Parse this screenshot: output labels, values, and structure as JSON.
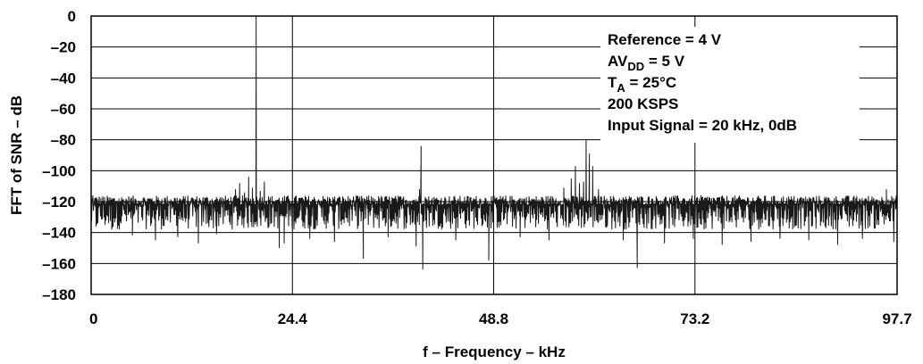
{
  "chart_data": {
    "type": "line",
    "xlabel": "f – Frequency – kHz",
    "ylabel": "FFT of SNR – dB",
    "xlim": [
      0,
      97.7
    ],
    "ylim": [
      -180,
      0
    ],
    "x_ticks": [
      "0",
      "24.4",
      "48.8",
      "73.2",
      "97.7"
    ],
    "x_tick_values": [
      0,
      24.4,
      48.8,
      73.2,
      97.7
    ],
    "y_ticks": [
      "0",
      "–20",
      "–40",
      "–60",
      "–80",
      "–100",
      "–120",
      "–140",
      "–160",
      "–180"
    ],
    "y_tick_values": [
      0,
      -20,
      -40,
      -60,
      -80,
      -100,
      -120,
      -140,
      -160,
      -180
    ],
    "grid": true,
    "series": [
      {
        "noise_floor_db": -124,
        "noise_band_db": [
          -138,
          -116
        ],
        "points": [
          {
            "x": 0.2,
            "y": -116
          },
          {
            "x": 0.6,
            "y": -136
          },
          {
            "x": 2.5,
            "y": -138
          },
          {
            "x": 5.0,
            "y": -142
          },
          {
            "x": 7.8,
            "y": -145
          },
          {
            "x": 10.5,
            "y": -143
          },
          {
            "x": 13.0,
            "y": -147
          },
          {
            "x": 15.2,
            "y": -141
          },
          {
            "x": 17.5,
            "y": -112
          },
          {
            "x": 18.0,
            "y": -108
          },
          {
            "x": 18.6,
            "y": -114
          },
          {
            "x": 19.1,
            "y": -104
          },
          {
            "x": 19.55,
            "y": -111
          },
          {
            "x": 20.0,
            "y": 0
          },
          {
            "x": 20.5,
            "y": -113
          },
          {
            "x": 21.0,
            "y": -107
          },
          {
            "x": 21.5,
            "y": -118
          },
          {
            "x": 22.8,
            "y": -150
          },
          {
            "x": 23.4,
            "y": -147
          },
          {
            "x": 26.5,
            "y": -144
          },
          {
            "x": 29.5,
            "y": -146
          },
          {
            "x": 33.0,
            "y": -157
          },
          {
            "x": 36.0,
            "y": -143
          },
          {
            "x": 39.4,
            "y": -149
          },
          {
            "x": 39.8,
            "y": -112
          },
          {
            "x": 40.0,
            "y": -84
          },
          {
            "x": 40.2,
            "y": -164
          },
          {
            "x": 40.5,
            "y": -117
          },
          {
            "x": 44.2,
            "y": -145
          },
          {
            "x": 48.2,
            "y": -158
          },
          {
            "x": 52.0,
            "y": -143
          },
          {
            "x": 55.5,
            "y": -145
          },
          {
            "x": 57.3,
            "y": -111
          },
          {
            "x": 58.2,
            "y": -105
          },
          {
            "x": 58.7,
            "y": -97
          },
          {
            "x": 59.2,
            "y": -108
          },
          {
            "x": 59.7,
            "y": -107
          },
          {
            "x": 60.0,
            "y": -80
          },
          {
            "x": 60.4,
            "y": -89
          },
          {
            "x": 60.8,
            "y": -97
          },
          {
            "x": 61.5,
            "y": -112
          },
          {
            "x": 62.5,
            "y": -118
          },
          {
            "x": 64.5,
            "y": -145
          },
          {
            "x": 66.2,
            "y": -163
          },
          {
            "x": 69.5,
            "y": -147
          },
          {
            "x": 73.0,
            "y": -144
          },
          {
            "x": 76.5,
            "y": -148
          },
          {
            "x": 80.0,
            "y": -146
          },
          {
            "x": 83.5,
            "y": -144
          },
          {
            "x": 87.0,
            "y": -145
          },
          {
            "x": 90.5,
            "y": -148
          },
          {
            "x": 93.5,
            "y": -144
          },
          {
            "x": 96.4,
            "y": -112
          },
          {
            "x": 97.3,
            "y": -146
          }
        ]
      }
    ],
    "annotations": [
      {
        "text": "Reference = 4 V"
      },
      {
        "text": "AV",
        "sub": "DD",
        "after": " = 5 V"
      },
      {
        "text": "T",
        "sub": "A",
        "after": " = 25°C"
      },
      {
        "text": "200 KSPS"
      },
      {
        "text": "Input Signal = 20 kHz, 0dB"
      }
    ],
    "colors": {
      "trace": "#1a1a1a",
      "grid": "#000000",
      "background": "#ffffff"
    }
  }
}
